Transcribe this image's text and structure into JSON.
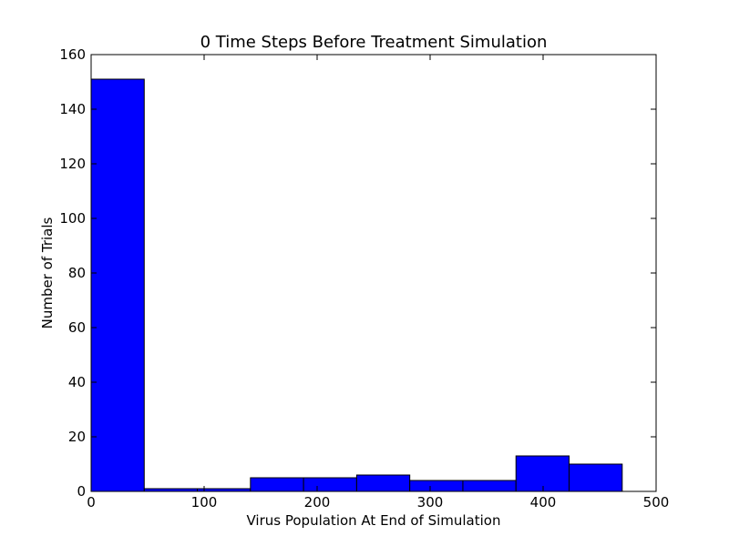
{
  "chart_data": {
    "type": "bar",
    "title": "0 Time Steps Before Treatment Simulation",
    "xlabel": "Virus Population At End of Simulation",
    "ylabel": "Number of Trials",
    "xlim": [
      0,
      500
    ],
    "ylim": [
      0,
      160
    ],
    "xticks": [
      0,
      100,
      200,
      300,
      400,
      500
    ],
    "yticks": [
      0,
      20,
      40,
      60,
      80,
      100,
      120,
      140,
      160
    ],
    "bins": [
      {
        "x0": 0,
        "x1": 47,
        "count": 151
      },
      {
        "x0": 47,
        "x1": 94,
        "count": 1
      },
      {
        "x0": 94,
        "x1": 141,
        "count": 1
      },
      {
        "x0": 141,
        "x1": 188,
        "count": 5
      },
      {
        "x0": 188,
        "x1": 235,
        "count": 5
      },
      {
        "x0": 235,
        "x1": 282,
        "count": 6
      },
      {
        "x0": 282,
        "x1": 329,
        "count": 4
      },
      {
        "x0": 329,
        "x1": 376,
        "count": 4
      },
      {
        "x0": 376,
        "x1": 423,
        "count": 13
      },
      {
        "x0": 423,
        "x1": 470,
        "count": 10
      }
    ],
    "bar_color": "#0000ff",
    "grid": false,
    "legend": "none"
  }
}
